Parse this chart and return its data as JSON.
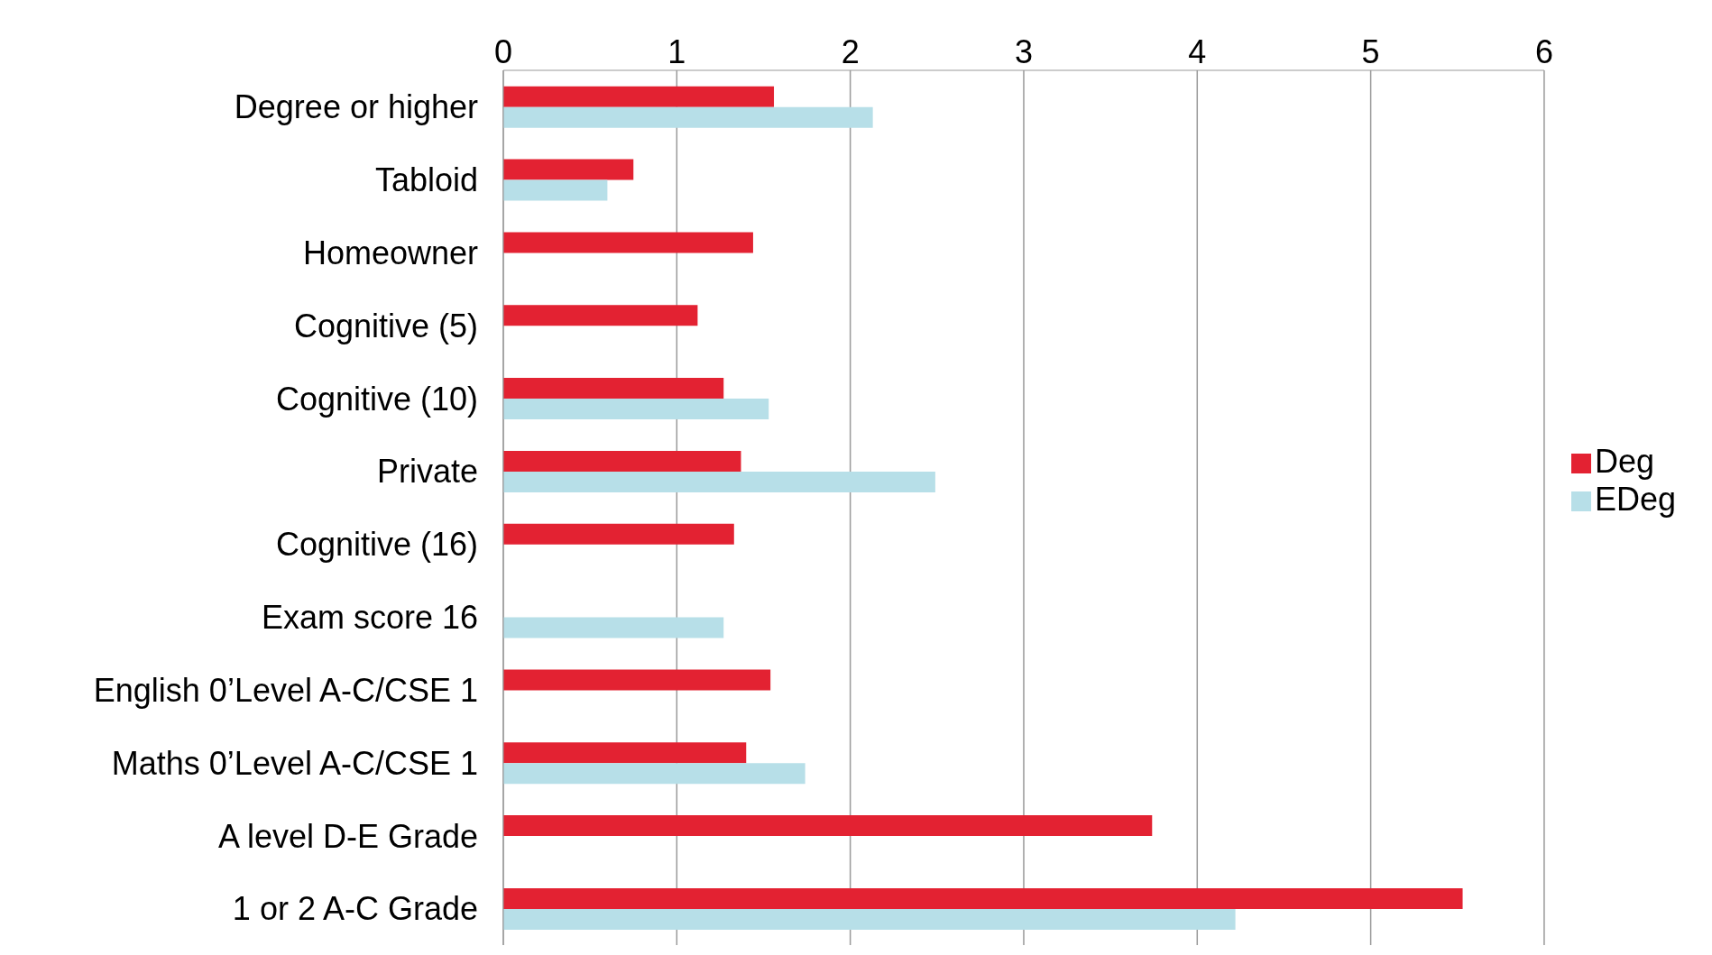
{
  "chart_data": {
    "type": "bar",
    "orientation": "horizontal",
    "categories": [
      "Degree or higher",
      "Tabloid",
      "Homeowner",
      "Cognitive (5)",
      "Cognitive (10)",
      "Private",
      "Cognitive (16)",
      "Exam score 16",
      "English 0’Level A-C/CSE 1",
      "Maths 0’Level A-C/CSE 1",
      "A level D-E Grade",
      "1 or 2 A-C Grade"
    ],
    "series": [
      {
        "name": "Deg",
        "color": "#e32232",
        "values": [
          1.56,
          0.75,
          1.44,
          1.12,
          1.27,
          1.37,
          1.33,
          null,
          1.54,
          1.4,
          3.74,
          5.53
        ]
      },
      {
        "name": "EDeg",
        "color": "#b7dfe8",
        "values": [
          2.13,
          0.6,
          null,
          null,
          1.53,
          2.49,
          null,
          1.27,
          null,
          1.74,
          null,
          4.22
        ]
      }
    ],
    "xlim": [
      0,
      6
    ],
    "xticks": [
      0,
      1,
      2,
      3,
      4,
      5,
      6
    ],
    "grid": "x",
    "legend": "right"
  }
}
